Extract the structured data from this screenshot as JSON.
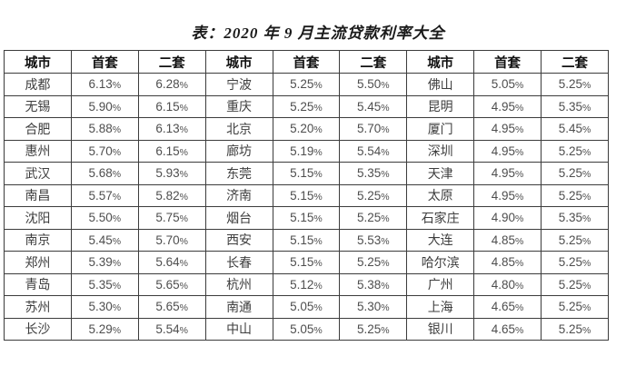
{
  "title": "表：2020 年 9 月主流贷款利率大全",
  "table": {
    "headers": [
      "城市",
      "首套",
      "二套",
      "城市",
      "首套",
      "二套",
      "城市",
      "首套",
      "二套"
    ],
    "rows": [
      [
        "成都",
        "6.13%",
        "6.28%",
        "宁波",
        "5.25%",
        "5.50%",
        "佛山",
        "5.05%",
        "5.25%"
      ],
      [
        "无锡",
        "5.90%",
        "6.15%",
        "重庆",
        "5.25%",
        "5.45%",
        "昆明",
        "4.95%",
        "5.35%"
      ],
      [
        "合肥",
        "5.88%",
        "6.13%",
        "北京",
        "5.20%",
        "5.70%",
        "厦门",
        "4.95%",
        "5.45%"
      ],
      [
        "惠州",
        "5.70%",
        "6.15%",
        "廊坊",
        "5.19%",
        "5.54%",
        "深圳",
        "4.95%",
        "5.25%"
      ],
      [
        "武汉",
        "5.68%",
        "5.93%",
        "东莞",
        "5.15%",
        "5.35%",
        "天津",
        "4.95%",
        "5.25%"
      ],
      [
        "南昌",
        "5.57%",
        "5.82%",
        "济南",
        "5.15%",
        "5.25%",
        "太原",
        "4.95%",
        "5.25%"
      ],
      [
        "沈阳",
        "5.50%",
        "5.75%",
        "烟台",
        "5.15%",
        "5.25%",
        "石家庄",
        "4.90%",
        "5.35%"
      ],
      [
        "南京",
        "5.45%",
        "5.70%",
        "西安",
        "5.15%",
        "5.53%",
        "大连",
        "4.85%",
        "5.25%"
      ],
      [
        "郑州",
        "5.39%",
        "5.64%",
        "长春",
        "5.15%",
        "5.25%",
        "哈尔滨",
        "4.85%",
        "5.25%"
      ],
      [
        "青岛",
        "5.35%",
        "5.65%",
        "杭州",
        "5.12%",
        "5.38%",
        "广州",
        "4.80%",
        "5.25%"
      ],
      [
        "苏州",
        "5.30%",
        "5.65%",
        "南通",
        "5.05%",
        "5.30%",
        "上海",
        "4.65%",
        "5.25%"
      ],
      [
        "长沙",
        "5.29%",
        "5.54%",
        "中山",
        "5.05%",
        "5.25%",
        "银川",
        "4.65%",
        "5.25%"
      ]
    ]
  }
}
